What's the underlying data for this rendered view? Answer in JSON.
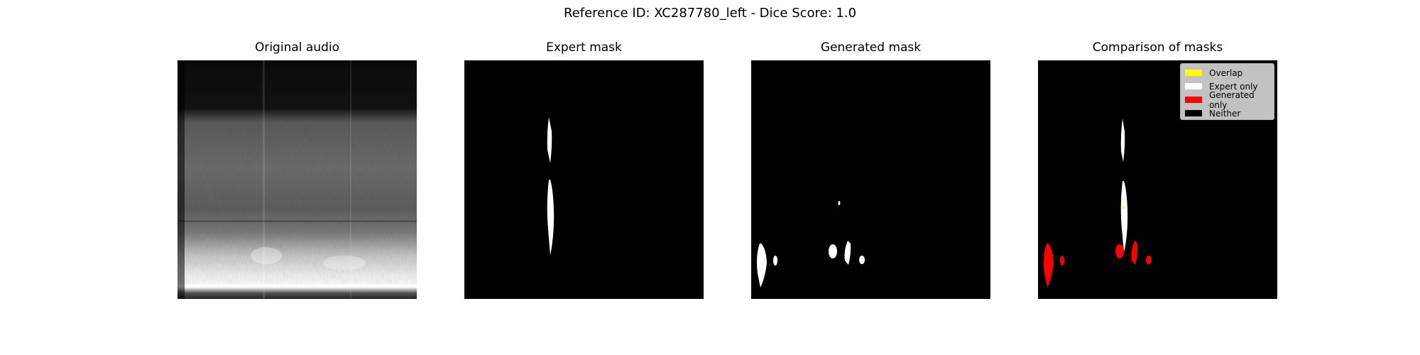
{
  "figure": {
    "title": "Reference ID: XC287780_left - Dice Score: 1.0"
  },
  "panels": [
    {
      "title": "Original audio"
    },
    {
      "title": "Expert mask"
    },
    {
      "title": "Generated mask"
    },
    {
      "title": "Comparison of masks"
    }
  ],
  "legend": {
    "items": [
      {
        "label": "Overlap",
        "color": "#ffff00"
      },
      {
        "label": "Expert only",
        "color": "#ffffff"
      },
      {
        "label": "Generated only",
        "color": "#ff0000"
      },
      {
        "label": "Neither",
        "color": "#000000"
      }
    ]
  }
}
